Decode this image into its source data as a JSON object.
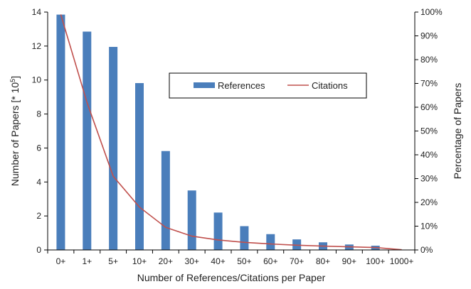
{
  "chart_data": {
    "type": "bar",
    "categories": [
      "0+",
      "1+",
      "5+",
      "10+",
      "20+",
      "30+",
      "40+",
      "50+",
      "60+",
      "70+",
      "80+",
      "90+",
      "100+",
      "1000+"
    ],
    "series": [
      {
        "name": "References",
        "type": "bar",
        "axis": "left",
        "color": "#4a7ebb",
        "values": [
          13.85,
          12.85,
          11.95,
          9.82,
          5.82,
          3.5,
          2.2,
          1.4,
          0.93,
          0.62,
          0.45,
          0.32,
          0.25,
          0.02
        ]
      },
      {
        "name": "Citations",
        "type": "line",
        "axis": "right",
        "color": "#c0504d",
        "values": [
          99,
          62,
          31,
          18,
          9.5,
          5.8,
          4.2,
          3.2,
          2.5,
          2.0,
          1.6,
          1.3,
          1.0,
          0.1
        ]
      }
    ],
    "xlabel": "Number of References/Citations per Paper",
    "ylabel": "Number of Papers [* 10",
    "ylabel_sup": "5",
    "ylabel_end": "]",
    "y2label": "Percentage of Papers",
    "ylim": [
      0,
      14
    ],
    "y_ticks": [
      "0",
      "2",
      "4",
      "6",
      "8",
      "10",
      "12",
      "14"
    ],
    "y2lim": [
      0,
      100
    ],
    "y2_ticks": [
      "0%",
      "10%",
      "20%",
      "30%",
      "40%",
      "50%",
      "60%",
      "70%",
      "80%",
      "90%",
      "100%"
    ],
    "grid": false,
    "legend_position": "center"
  }
}
